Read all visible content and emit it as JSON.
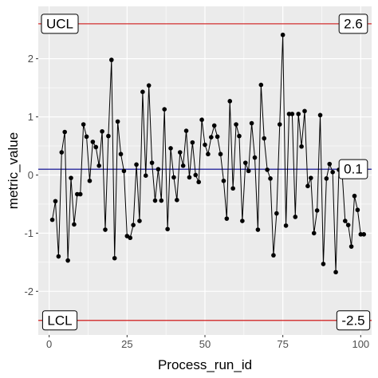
{
  "chart_data": {
    "type": "line",
    "title": "",
    "xlabel": "Process_run_id",
    "ylabel": "metric_value",
    "xlim": [
      -3.5,
      103.5
    ],
    "ylim": [
      -2.75,
      2.9
    ],
    "x_ticks": [
      0,
      25,
      50,
      75,
      100
    ],
    "x_tick_labels": [
      "0",
      "25",
      "50",
      "75",
      "100"
    ],
    "y_ticks": [
      -2,
      -1,
      0,
      1,
      2
    ],
    "y_tick_labels": [
      "-2",
      "-1",
      "0",
      "1",
      "2"
    ],
    "grid": true,
    "series": [
      {
        "values": [
          -0.77,
          -0.45,
          -1.4,
          0.39,
          0.74,
          -1.47,
          -0.05,
          -0.85,
          -0.33,
          -0.33,
          0.87,
          0.66,
          -0.1,
          0.57,
          0.48,
          0.16,
          0.75,
          -0.94,
          0.67,
          1.98,
          -1.43,
          0.92,
          0.36,
          0.07,
          -1.05,
          -1.08,
          -0.86,
          0.18,
          -0.79,
          1.43,
          -0.01,
          1.54,
          0.21,
          -0.44,
          0.1,
          -0.44,
          1.13,
          -0.93,
          0.46,
          -0.04,
          -0.43,
          0.39,
          0.16,
          0.76,
          -0.04,
          0.56,
          0.0,
          -0.12,
          0.95,
          0.52,
          0.36,
          0.65,
          0.85,
          0.66,
          0.36,
          -0.1,
          -0.75,
          1.27,
          -0.23,
          0.87,
          0.67,
          -0.79,
          0.21,
          0.07,
          0.89,
          0.3,
          -0.94,
          1.55,
          0.63,
          0.09,
          -0.06,
          -1.38,
          -0.66,
          0.87,
          2.41,
          -0.87,
          1.05,
          1.05,
          -0.72,
          1.05,
          0.49,
          1.1,
          -0.19,
          -0.05,
          -1.0,
          -0.61,
          1.03,
          -1.53,
          -0.06,
          0.19,
          0.05,
          -1.67,
          0.09,
          0.07,
          -0.79,
          -0.86,
          -1.23,
          -0.36,
          -0.6,
          -1.02,
          -1.02
        ]
      }
    ],
    "reference_lines": [
      {
        "name": "UCL",
        "value": 2.6,
        "value_label": "2.6",
        "color": "#cc0000"
      },
      {
        "name": "mean",
        "value": 0.1,
        "value_label": "0.1",
        "color": "#00008b"
      },
      {
        "name": "LCL",
        "value": -2.5,
        "value_label": "-2.5",
        "color": "#cc0000"
      }
    ],
    "boxed_labels": [
      {
        "text": "UCL",
        "line": "UCL"
      },
      {
        "text": "LCL",
        "line": "LCL"
      }
    ],
    "colors": {
      "panel_background": "#ebebeb",
      "grid": "#ffffff",
      "series": "#000000"
    }
  }
}
